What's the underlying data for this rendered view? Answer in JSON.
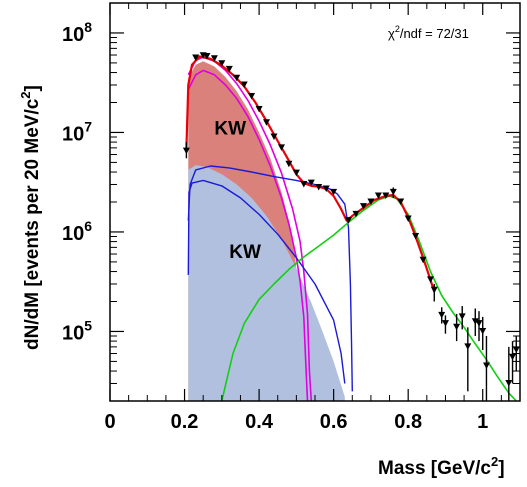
{
  "chart_data": {
    "type": "line",
    "xlabel": "Mass  [GeV/c",
    "xlabel_sup": "2",
    "xlabel_end": "]",
    "ylabel": "dN/dM  [events per 20 MeV/c",
    "ylabel_sup": "2",
    "ylabel_end": "]",
    "annotation": "χ",
    "annotation_sup": "2",
    "annotation_rest": "/ndf = 72/31",
    "xlim": [
      0,
      1.1
    ],
    "ylim": [
      20000,
      200000000
    ],
    "yscale": "log",
    "x_ticks": [
      {
        "value": 0,
        "label": "0"
      },
      {
        "value": 0.2,
        "label": "0.2"
      },
      {
        "value": 0.4,
        "label": "0.4"
      },
      {
        "value": 0.6,
        "label": "0.6"
      },
      {
        "value": 0.8,
        "label": "0.8"
      },
      {
        "value": 1.0,
        "label": "1"
      }
    ],
    "y_ticks": [
      {
        "value": 100000,
        "base": "10",
        "exp": "5"
      },
      {
        "value": 1000000,
        "base": "10",
        "exp": "6"
      },
      {
        "value": 10000000,
        "base": "10",
        "exp": "7"
      },
      {
        "value": 100000000,
        "base": "10",
        "exp": "8"
      }
    ],
    "region_labels": [
      {
        "text": "KW",
        "x": 0.28,
        "y": 9500000
      },
      {
        "text": "KW",
        "x": 0.32,
        "y": 550000
      }
    ],
    "colors": {
      "total_fit": "#e8000b",
      "red_fill": "#d9817a",
      "blue_fill": "#b2c0e0",
      "magenta": "#e000e0",
      "blue": "#1a1ad8",
      "green": "#10d010",
      "points": "#000000"
    },
    "series": [
      {
        "key": "blue_filled",
        "points": [
          [
            0.21,
            4200000
          ],
          [
            0.23,
            4700000
          ],
          [
            0.26,
            4500000
          ],
          [
            0.3,
            3800000
          ],
          [
            0.34,
            3000000
          ],
          [
            0.38,
            2200000
          ],
          [
            0.42,
            1450000
          ],
          [
            0.46,
            850000
          ],
          [
            0.5,
            430000
          ],
          [
            0.54,
            195000
          ],
          [
            0.57,
            100000
          ],
          [
            0.6,
            50000
          ],
          [
            0.63,
            22000
          ]
        ]
      },
      {
        "key": "red_filled",
        "points": [
          [
            0.21,
            35000000
          ],
          [
            0.23,
            48000000
          ],
          [
            0.25,
            52000000
          ],
          [
            0.28,
            46000000
          ],
          [
            0.31,
            36000000
          ],
          [
            0.34,
            26000000
          ],
          [
            0.37,
            17000000
          ],
          [
            0.4,
            10000000
          ],
          [
            0.43,
            5500000
          ],
          [
            0.46,
            2500000
          ],
          [
            0.48,
            1300000
          ],
          [
            0.49,
            900000
          ],
          [
            0.5,
            420000
          ]
        ]
      },
      {
        "key": "magenta_upper",
        "points": [
          [
            0.21,
            38000000
          ],
          [
            0.23,
            53000000
          ],
          [
            0.25,
            57000000
          ],
          [
            0.28,
            52000000
          ],
          [
            0.31,
            42000000
          ],
          [
            0.34,
            31000000
          ],
          [
            0.37,
            21000000
          ],
          [
            0.4,
            13000000
          ],
          [
            0.43,
            7500000
          ],
          [
            0.46,
            3900000
          ],
          [
            0.49,
            1700000
          ],
          [
            0.51,
            800000
          ],
          [
            0.52,
            400000
          ],
          [
            0.53,
            150000
          ],
          [
            0.535,
            40000
          ],
          [
            0.54,
            20000
          ]
        ]
      },
      {
        "key": "magenta_lower",
        "points": [
          [
            0.21,
            27000000
          ],
          [
            0.23,
            38000000
          ],
          [
            0.25,
            42000000
          ],
          [
            0.28,
            38000000
          ],
          [
            0.31,
            30000000
          ],
          [
            0.34,
            22000000
          ],
          [
            0.37,
            14500000
          ],
          [
            0.4,
            8500000
          ],
          [
            0.43,
            4600000
          ],
          [
            0.46,
            2200000
          ],
          [
            0.48,
            1200000
          ],
          [
            0.5,
            550000
          ],
          [
            0.51,
            320000
          ],
          [
            0.52,
            140000
          ],
          [
            0.525,
            50000
          ],
          [
            0.53,
            20000
          ]
        ]
      },
      {
        "key": "blue_upper",
        "points": [
          [
            0.21,
            1300000
          ],
          [
            0.215,
            3000000
          ],
          [
            0.23,
            4200000
          ],
          [
            0.27,
            4600000
          ],
          [
            0.32,
            4400000
          ],
          [
            0.38,
            4000000
          ],
          [
            0.44,
            3600000
          ],
          [
            0.5,
            3300000
          ],
          [
            0.55,
            3000000
          ],
          [
            0.59,
            2700000
          ],
          [
            0.61,
            2400000
          ],
          [
            0.63,
            1900000
          ],
          [
            0.64,
            1100000
          ],
          [
            0.645,
            300000
          ],
          [
            0.648,
            80000
          ],
          [
            0.65,
            25000
          ]
        ]
      },
      {
        "key": "blue_lower",
        "points": [
          [
            0.21,
            370000
          ],
          [
            0.212,
            2500000
          ],
          [
            0.22,
            3100000
          ],
          [
            0.25,
            3300000
          ],
          [
            0.3,
            2900000
          ],
          [
            0.35,
            2200000
          ],
          [
            0.4,
            1500000
          ],
          [
            0.45,
            950000
          ],
          [
            0.5,
            550000
          ],
          [
            0.55,
            300000
          ],
          [
            0.6,
            130000
          ],
          [
            0.62,
            60000
          ],
          [
            0.63,
            30000
          ]
        ]
      },
      {
        "key": "green",
        "points": [
          [
            0.3,
            20000
          ],
          [
            0.33,
            60000
          ],
          [
            0.36,
            120000
          ],
          [
            0.4,
            210000
          ],
          [
            0.44,
            300000
          ],
          [
            0.48,
            420000
          ],
          [
            0.52,
            560000
          ],
          [
            0.56,
            720000
          ],
          [
            0.6,
            930000
          ],
          [
            0.64,
            1250000
          ],
          [
            0.68,
            1650000
          ],
          [
            0.72,
            2100000
          ],
          [
            0.75,
            2300000
          ],
          [
            0.77,
            2150000
          ],
          [
            0.8,
            1500000
          ],
          [
            0.83,
            800000
          ],
          [
            0.86,
            400000
          ],
          [
            0.89,
            230000
          ],
          [
            0.92,
            155000
          ],
          [
            0.95,
            110000
          ],
          [
            0.98,
            75000
          ],
          [
            1.01,
            52000
          ],
          [
            1.04,
            35000
          ],
          [
            1.07,
            24000
          ],
          [
            1.09,
            18000
          ]
        ]
      },
      {
        "key": "total_fit",
        "points": [
          [
            0.205,
            7000000
          ],
          [
            0.21,
            30000000
          ],
          [
            0.22,
            48000000
          ],
          [
            0.24,
            58000000
          ],
          [
            0.27,
            55000000
          ],
          [
            0.3,
            47000000
          ],
          [
            0.33,
            38000000
          ],
          [
            0.36,
            29000000
          ],
          [
            0.39,
            20000000
          ],
          [
            0.42,
            13000000
          ],
          [
            0.45,
            8200000
          ],
          [
            0.48,
            5200000
          ],
          [
            0.5,
            3800000
          ],
          [
            0.52,
            3100000
          ],
          [
            0.54,
            2900000
          ],
          [
            0.56,
            2850000
          ],
          [
            0.58,
            2700000
          ],
          [
            0.6,
            2300000
          ],
          [
            0.62,
            1700000
          ],
          [
            0.635,
            1300000
          ],
          [
            0.65,
            1450000
          ],
          [
            0.68,
            1750000
          ],
          [
            0.71,
            2100000
          ],
          [
            0.74,
            2300000
          ],
          [
            0.76,
            2350000
          ],
          [
            0.78,
            2000000
          ],
          [
            0.8,
            1400000
          ],
          [
            0.82,
            900000
          ],
          [
            0.84,
            550000
          ],
          [
            0.86,
            330000
          ],
          [
            0.87,
            250000
          ]
        ]
      }
    ],
    "data_points": [
      {
        "x": 0.205,
        "y": 6500000,
        "lo": 5500000,
        "hi": 8000000
      },
      {
        "x": 0.23,
        "y": 56000000
      },
      {
        "x": 0.25,
        "y": 59000000
      },
      {
        "x": 0.26,
        "y": 58000000
      },
      {
        "x": 0.28,
        "y": 55000000
      },
      {
        "x": 0.3,
        "y": 49000000
      },
      {
        "x": 0.32,
        "y": 43000000
      },
      {
        "x": 0.34,
        "y": 35000000
      },
      {
        "x": 0.36,
        "y": 30000000
      },
      {
        "x": 0.38,
        "y": 23000000
      },
      {
        "x": 0.4,
        "y": 17000000
      },
      {
        "x": 0.42,
        "y": 12500000
      },
      {
        "x": 0.44,
        "y": 9000000
      },
      {
        "x": 0.46,
        "y": 7000000
      },
      {
        "x": 0.48,
        "y": 4800000
      },
      {
        "x": 0.5,
        "y": 3900000
      },
      {
        "x": 0.52,
        "y": 3000000
      },
      {
        "x": 0.54,
        "y": 3100000
      },
      {
        "x": 0.56,
        "y": 2800000
      },
      {
        "x": 0.58,
        "y": 2700000
      },
      {
        "x": 0.6,
        "y": 2500000
      },
      {
        "x": 0.64,
        "y": 1300000
      },
      {
        "x": 0.66,
        "y": 1500000
      },
      {
        "x": 0.68,
        "y": 1800000
      },
      {
        "x": 0.7,
        "y": 2000000
      },
      {
        "x": 0.72,
        "y": 2300000
      },
      {
        "x": 0.74,
        "y": 2300000
      },
      {
        "x": 0.76,
        "y": 2500000,
        "lo": 2200000,
        "hi": 2800000
      },
      {
        "x": 0.78,
        "y": 2000000
      },
      {
        "x": 0.8,
        "y": 1350000
      },
      {
        "x": 0.82,
        "y": 900000
      },
      {
        "x": 0.84,
        "y": 520000
      },
      {
        "x": 0.86,
        "y": 330000
      },
      {
        "x": 0.87,
        "y": 260000,
        "lo": 200000,
        "hi": 300000
      },
      {
        "x": 0.89,
        "y": 145000,
        "lo": 120000,
        "hi": 175000
      },
      {
        "x": 0.9,
        "y": 120000,
        "lo": 95000,
        "hi": 145000
      },
      {
        "x": 0.93,
        "y": 110000,
        "lo": 80000,
        "hi": 150000
      },
      {
        "x": 0.945,
        "y": 140000,
        "lo": 105000,
        "hi": 180000
      },
      {
        "x": 0.96,
        "y": 70000,
        "lo": 25000,
        "hi": 110000
      },
      {
        "x": 0.98,
        "y": 125000,
        "lo": 90000,
        "hi": 170000
      },
      {
        "x": 0.99,
        "y": 120000,
        "lo": 80000,
        "hi": 160000
      },
      {
        "x": 1.0,
        "y": 100000,
        "lo": 65000,
        "hi": 140000
      },
      {
        "x": 1.01,
        "y": 45000,
        "lo": 20000,
        "hi": 90000
      },
      {
        "x": 1.07,
        "y": 30000,
        "lo": 20000,
        "hi": 70000
      },
      {
        "x": 1.08,
        "y": 55000,
        "lo": 30000,
        "hi": 80000
      },
      {
        "x": 1.09,
        "y": 65000,
        "lo": 40000,
        "hi": 90000
      }
    ]
  }
}
